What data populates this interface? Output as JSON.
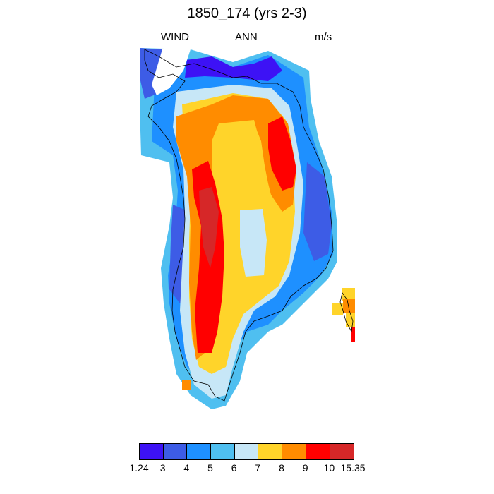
{
  "title": "1850_174 (yrs 2-3)",
  "subtitle_left": "WIND",
  "subtitle_center": "ANN",
  "subtitle_right": "m/s",
  "colorbar": {
    "colors": [
      "#3d12f5",
      "#3d5ce6",
      "#1e90ff",
      "#4fbff0",
      "#c7e7f7",
      "#ffd42a",
      "#ff8c00",
      "#ff0000",
      "#d62728"
    ],
    "labels": [
      "1.24",
      "3",
      "4",
      "5",
      "6",
      "7",
      "8",
      "9",
      "10",
      "15.35"
    ]
  },
  "map_colors": {
    "c1": "#3d12f5",
    "c2": "#3d5ce6",
    "c3": "#1e90ff",
    "c4": "#4fbff0",
    "c5": "#c7e7f7",
    "c6": "#ffd42a",
    "c7": "#ff8c00",
    "c8": "#ff0000",
    "c9": "#d62728"
  }
}
